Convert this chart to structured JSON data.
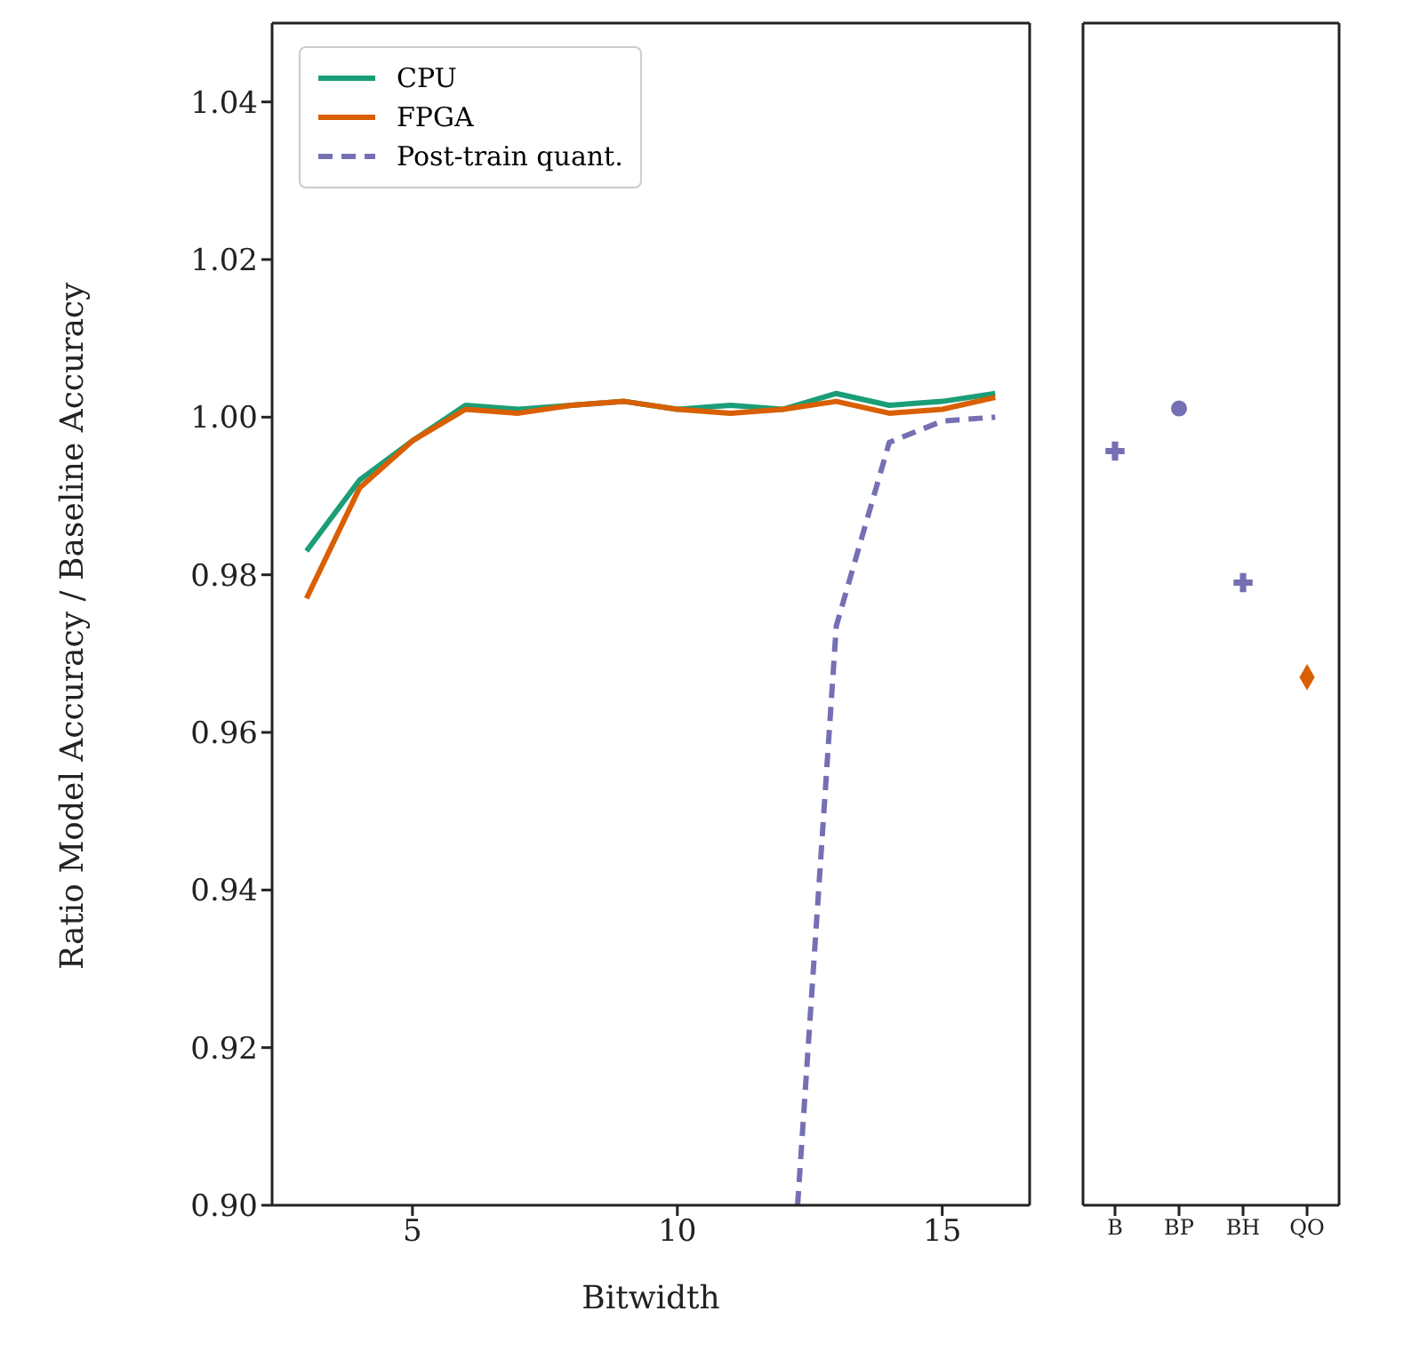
{
  "chart_data": [
    {
      "type": "line",
      "xlabel": "Bitwidth",
      "ylabel": "Ratio Model Accuracy / Baseline Accuracy",
      "xlim": [
        2.35,
        16.65
      ],
      "xticks": [
        5,
        10,
        15
      ],
      "ylim": [
        0.9,
        1.05
      ],
      "yticks": [
        {
          "value": 0.9,
          "label": "0.90"
        },
        0.92,
        0.94,
        0.96,
        0.98,
        {
          "value": 1.0,
          "label": "1.00"
        },
        1.02,
        1.04
      ],
      "legend": "top left",
      "marker": "none",
      "series": [
        {
          "name": "CPU",
          "color": "#1b9e77",
          "line_style": "solid",
          "x": [
            3,
            4,
            5,
            6,
            7,
            8,
            9,
            10,
            11,
            12,
            13,
            14,
            15,
            16
          ],
          "values": [
            0.983,
            0.992,
            0.997,
            1.0015,
            1.001,
            1.0015,
            1.002,
            1.001,
            1.0015,
            1.001,
            1.003,
            1.0015,
            1.002,
            1.003
          ]
        },
        {
          "name": "FPGA",
          "color": "#d95f02",
          "line_style": "solid",
          "x": [
            3,
            4,
            5,
            6,
            7,
            8,
            9,
            10,
            11,
            12,
            13,
            14,
            15,
            16
          ],
          "values": [
            0.977,
            0.991,
            0.997,
            1.001,
            1.0005,
            1.0015,
            1.002,
            1.001,
            1.0005,
            1.001,
            1.002,
            1.0005,
            1.001,
            1.0025
          ]
        },
        {
          "name": "Post-train quant.",
          "color": "#7570b3",
          "line_style": "dashed",
          "x": [
            12.27,
            13,
            14,
            15,
            16
          ],
          "values": [
            0.9,
            0.9735,
            0.9968,
            0.9995,
            1.0
          ]
        }
      ]
    },
    {
      "type": "scatter",
      "categories": [
        "B",
        "BP",
        "BH",
        "QO"
      ],
      "ylim": [
        0.9,
        1.05
      ],
      "tick_labels": "x",
      "series": [
        {
          "color": "#7570b3",
          "marker": "cross",
          "values": [
            0.9957,
            null,
            null,
            null
          ]
        },
        {
          "color": "#7570b3",
          "marker": "circle",
          "values": [
            null,
            1.0011,
            null,
            null
          ]
        },
        {
          "color": "#7570b3",
          "marker": "cross",
          "values": [
            null,
            null,
            0.979,
            null
          ]
        },
        {
          "color": "#d95f02",
          "marker": "diamond",
          "values": [
            null,
            null,
            null,
            0.967
          ]
        }
      ]
    }
  ]
}
